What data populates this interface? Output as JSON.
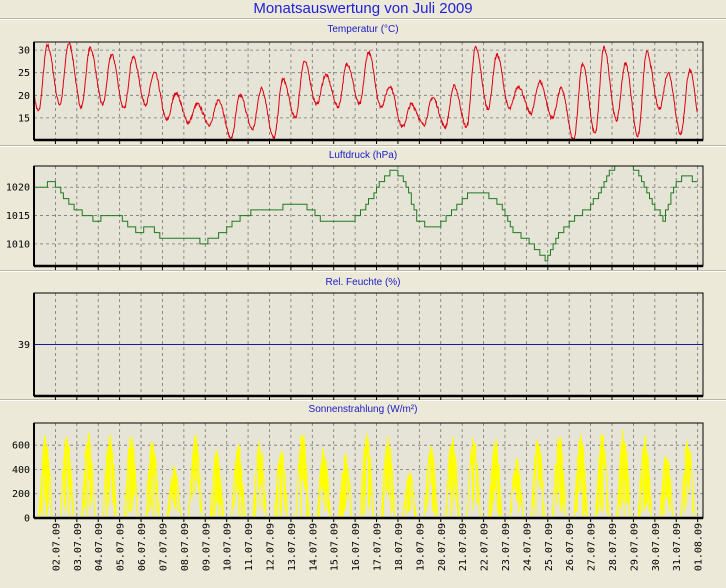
{
  "title": "Monatsauswertung von Juli 2009",
  "date_labels": [
    "02.07.09",
    "03.07.09",
    "04.07.09",
    "05.07.09",
    "06.07.09",
    "07.07.09",
    "08.07.09",
    "09.07.09",
    "10.07.09",
    "11.07.09",
    "12.07.09",
    "13.07.09",
    "14.07.09",
    "15.07.09",
    "16.07.09",
    "17.07.09",
    "18.07.09",
    "19.07.09",
    "20.07.09",
    "21.07.09",
    "22.07.09",
    "23.07.09",
    "24.07.09",
    "25.07.09",
    "26.07.09",
    "27.07.09",
    "28.07.09",
    "29.07.09",
    "30.07.09",
    "31.07.09",
    "01.08.09"
  ],
  "chart_data": [
    {
      "type": "line",
      "title": "Temperatur (°C)",
      "color": "#e00010",
      "ylim": [
        10.1,
        31.8
      ],
      "yticks": [
        "15",
        "20",
        "25",
        "30"
      ],
      "ytick_values": [
        15,
        20,
        25,
        30
      ],
      "x": "days 1-31 July 2009",
      "daily_max": [
        31,
        31.5,
        30.5,
        29,
        28.5,
        25,
        20.5,
        18,
        19,
        20,
        21.5,
        23.5,
        27.5,
        24.5,
        27,
        29.5,
        22,
        18,
        19.5,
        22,
        30.5,
        29,
        22,
        23,
        21.5,
        27,
        30.5,
        27,
        29.5,
        25,
        25.5
      ],
      "daily_min": [
        16.5,
        18,
        17.5,
        18,
        17,
        18,
        14.5,
        14,
        13.5,
        10.5,
        12.5,
        10.5,
        15,
        18,
        17.5,
        18,
        17.5,
        13,
        13.5,
        13,
        13,
        17,
        17,
        16,
        15,
        10,
        11.5,
        14.5,
        11,
        17,
        11.5
      ]
    },
    {
      "type": "line",
      "title": "Luftdruck (hPa)",
      "color": "#1e7a1e",
      "ylim": [
        1006.1,
        1023.75
      ],
      "yticks": [
        "1010",
        "1015",
        "1020"
      ],
      "ytick_values": [
        1010,
        1015,
        1020
      ],
      "half_day_values": [
        1020,
        1021,
        1018,
        1016,
        1015,
        1014,
        1015,
        1015,
        1013,
        1012,
        1013,
        1011,
        1011,
        1011,
        1011,
        1010,
        1011,
        1012,
        1014,
        1015,
        1016,
        1016,
        1016,
        1017,
        1017,
        1016,
        1014,
        1014,
        1014,
        1014,
        1016,
        1019,
        1022,
        1023,
        1020,
        1014,
        1013,
        1013,
        1015,
        1017,
        1019,
        1019,
        1018,
        1016,
        1012,
        1011,
        1009,
        1007,
        1011,
        1013,
        1015,
        1016,
        1019,
        1023,
        1024,
        1024,
        1021,
        1017,
        1014,
        1020,
        1022,
        1021
      ]
    },
    {
      "type": "line",
      "title": "Rel. Feuchte (%)",
      "color": "#1a1a9a",
      "ylim": [
        29,
        49
      ],
      "yticks": [
        "39"
      ],
      "ytick_values": [
        39
      ],
      "constant_value": 39
    },
    {
      "type": "area",
      "title": "Sonnenstrahlung (W/m²)",
      "color": "#ffff00",
      "ylim": [
        0,
        783
      ],
      "yticks": [
        "0",
        "200",
        "400",
        "600"
      ],
      "ytick_values": [
        0,
        200,
        400,
        600
      ],
      "daily_peak": [
        690,
        700,
        710,
        710,
        710,
        700,
        460,
        700,
        570,
        620,
        660,
        590,
        730,
        600,
        540,
        720,
        700,
        380,
        620,
        740,
        690,
        680,
        500,
        700,
        720,
        700,
        710,
        760,
        700,
        560,
        660
      ]
    }
  ]
}
